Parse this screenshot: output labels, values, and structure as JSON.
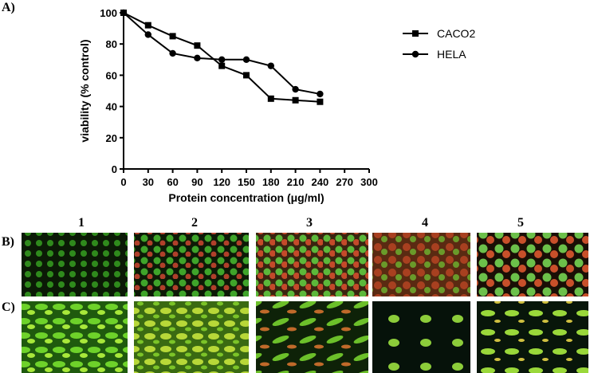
{
  "chart_data": {
    "type": "line",
    "x": [
      0,
      30,
      60,
      90,
      120,
      150,
      180,
      210,
      240
    ],
    "series": [
      {
        "name": "CACO2",
        "color": "#000000",
        "marker": "square",
        "values": [
          100,
          92,
          85,
          79,
          66,
          60,
          45,
          44,
          43
        ]
      },
      {
        "name": "HELA",
        "color": "#000000",
        "marker": "circle",
        "values": [
          100,
          86,
          74,
          71,
          70,
          70,
          66,
          51,
          48
        ]
      }
    ],
    "xlabel": "Protein concentration (μg/ml)",
    "ylabel": "viability (% control)",
    "xlim": [
      0,
      300
    ],
    "xticks": [
      0,
      30,
      60,
      90,
      120,
      150,
      180,
      210,
      240,
      270,
      300
    ],
    "ylim": [
      0,
      100
    ],
    "yticks": [
      0,
      20,
      40,
      60,
      80,
      100
    ],
    "grid": false,
    "legend": "right"
  },
  "panels": {
    "labels": [
      "A)",
      "B)",
      "C)"
    ],
    "columns": [
      "1",
      "2",
      "3",
      "4",
      "5"
    ]
  }
}
